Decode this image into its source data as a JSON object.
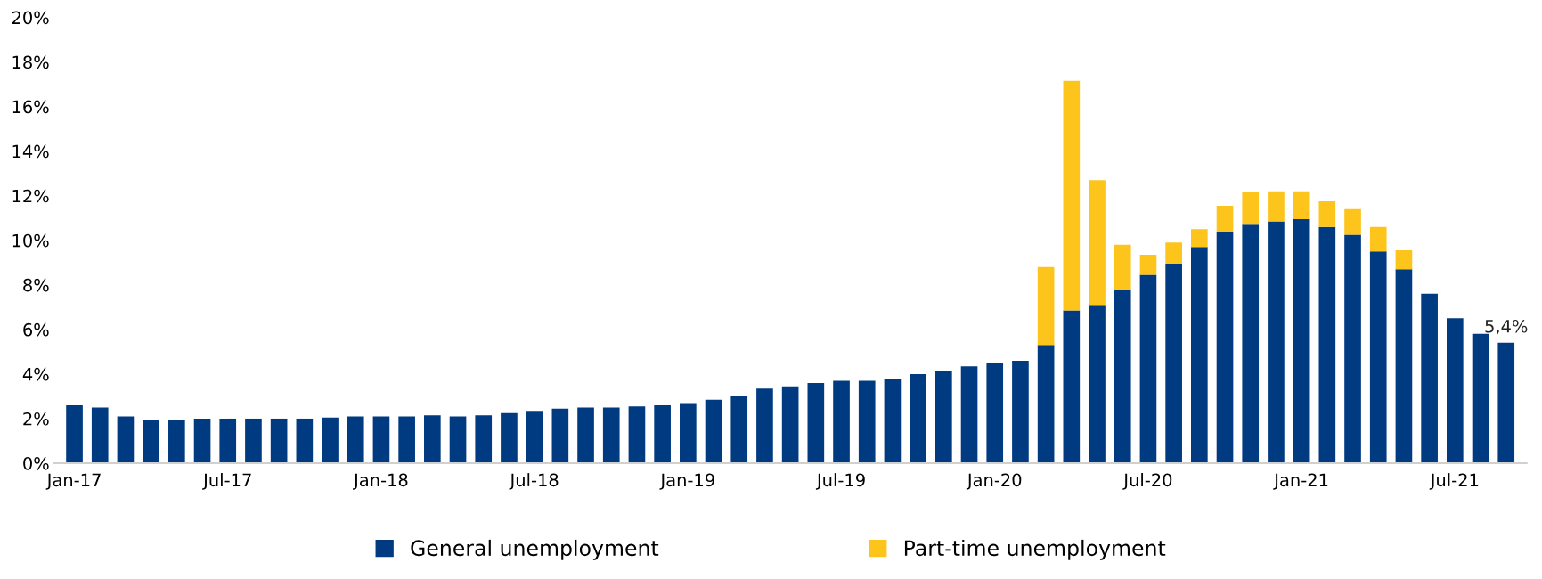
{
  "chart_data": {
    "type": "bar",
    "stacked": true,
    "categories": [
      "Jan-17",
      null,
      null,
      null,
      null,
      null,
      "Jul-17",
      null,
      null,
      null,
      null,
      null,
      "Jan-18",
      null,
      null,
      null,
      null,
      null,
      "Jul-18",
      null,
      null,
      null,
      null,
      null,
      "Jan-19",
      null,
      null,
      null,
      null,
      null,
      "Jul-19",
      null,
      null,
      null,
      null,
      null,
      "Jan-20",
      null,
      null,
      null,
      null,
      null,
      "Jul-20",
      null,
      null,
      null,
      null,
      null,
      "Jan-21",
      null,
      null,
      null,
      null,
      null,
      "Jul-21",
      null,
      null
    ],
    "series": [
      {
        "name": "General unemployment",
        "color": "#003a80",
        "values": [
          2.6,
          2.5,
          2.1,
          1.95,
          1.95,
          2.0,
          2.0,
          2.0,
          2.0,
          2.0,
          2.05,
          2.1,
          2.1,
          2.1,
          2.15,
          2.1,
          2.15,
          2.25,
          2.35,
          2.45,
          2.5,
          2.5,
          2.55,
          2.6,
          2.7,
          2.85,
          3.0,
          3.35,
          3.45,
          3.6,
          3.7,
          3.7,
          3.8,
          4.0,
          4.15,
          4.35,
          4.5,
          4.6,
          5.3,
          6.85,
          7.1,
          7.8,
          8.45,
          8.95,
          9.7,
          10.35,
          10.7,
          10.85,
          10.95,
          10.6,
          10.25,
          9.5,
          8.7,
          7.6,
          6.5,
          5.8,
          5.4
        ],
        "value_labels": [
          null,
          null,
          null,
          null,
          null,
          null,
          null,
          null,
          null,
          null,
          null,
          null,
          null,
          null,
          null,
          null,
          null,
          null,
          null,
          null,
          null,
          null,
          null,
          null,
          null,
          null,
          null,
          null,
          null,
          null,
          null,
          null,
          null,
          null,
          null,
          null,
          null,
          null,
          null,
          null,
          null,
          null,
          null,
          null,
          null,
          null,
          null,
          null,
          null,
          null,
          null,
          null,
          null,
          null,
          null,
          null,
          "5,4%"
        ]
      },
      {
        "name": "Part-time unemployment",
        "color": "#fdc41c",
        "values": [
          null,
          null,
          null,
          null,
          null,
          null,
          null,
          null,
          null,
          null,
          null,
          null,
          null,
          null,
          null,
          null,
          null,
          null,
          null,
          null,
          null,
          null,
          null,
          null,
          null,
          null,
          null,
          null,
          null,
          null,
          null,
          null,
          null,
          null,
          null,
          null,
          null,
          null,
          3.5,
          10.3,
          5.6,
          2.0,
          0.9,
          0.95,
          0.8,
          1.2,
          1.45,
          1.35,
          1.25,
          1.15,
          1.15,
          1.1,
          0.85,
          null,
          null,
          null,
          null
        ]
      }
    ],
    "ylim": [
      0,
      20
    ],
    "yticks": [
      {
        "value": 0,
        "label": "0%"
      },
      {
        "value": 2,
        "label": "2%"
      },
      {
        "value": 4,
        "label": "4%"
      },
      {
        "value": 6,
        "label": "6%"
      },
      {
        "value": 8,
        "label": "8%"
      },
      {
        "value": 10,
        "label": "10%"
      },
      {
        "value": 12,
        "label": "12%"
      },
      {
        "value": 14,
        "label": "14%"
      },
      {
        "value": 16,
        "label": "16%"
      },
      {
        "value": 18,
        "label": "18%"
      },
      {
        "value": 20,
        "label": "20%"
      }
    ],
    "grid": false,
    "legend": "bottom"
  }
}
